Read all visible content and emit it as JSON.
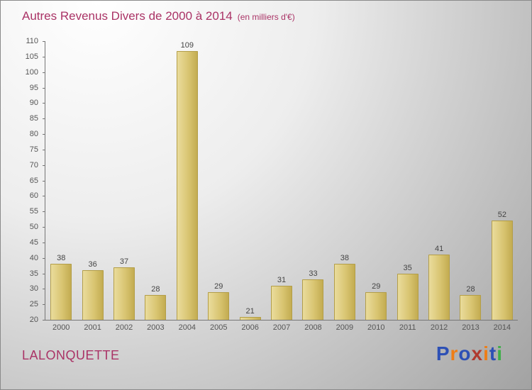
{
  "header": {
    "title": "Autres Revenus Divers de 2000 à 2014",
    "subtitle": "(en milliers d'€)"
  },
  "footer": {
    "location": "LALONQUETTE"
  },
  "brand": {
    "name": "Proxiti",
    "letters": [
      {
        "ch": "P",
        "color": "#2d50b5"
      },
      {
        "ch": "r",
        "color": "#ef7d15"
      },
      {
        "ch": "o",
        "color": "#2d50b5"
      },
      {
        "ch": "x",
        "color": "#b03a2e"
      },
      {
        "ch": "i",
        "color": "#ef7d15"
      },
      {
        "ch": "t",
        "color": "#2d50b5"
      },
      {
        "ch": "i",
        "color": "#3fae49"
      }
    ]
  },
  "colors": {
    "title_text": "#aa3366",
    "bar_light": "#eadc9c",
    "bar_dark": "#c3ac51",
    "bar_border": "#b39e49",
    "axis": "#767676",
    "tick_text": "#555555",
    "value_text": "#444444"
  },
  "chart_data": {
    "type": "bar",
    "title": "Autres Revenus Divers de 2000 à 2014",
    "subtitle": "(en milliers d'€)",
    "categories": [
      "2000",
      "2001",
      "2002",
      "2003",
      "2004",
      "2005",
      "2006",
      "2007",
      "2008",
      "2009",
      "2010",
      "2011",
      "2012",
      "2013",
      "2014"
    ],
    "values": [
      38,
      36,
      37,
      28,
      109,
      29,
      21,
      31,
      33,
      38,
      29,
      35,
      41,
      28,
      52
    ],
    "xlabel": "",
    "ylabel": "",
    "ylim": [
      20,
      110
    ],
    "ytick_step": 5,
    "grid": false,
    "legend": false,
    "value_labels": true
  }
}
